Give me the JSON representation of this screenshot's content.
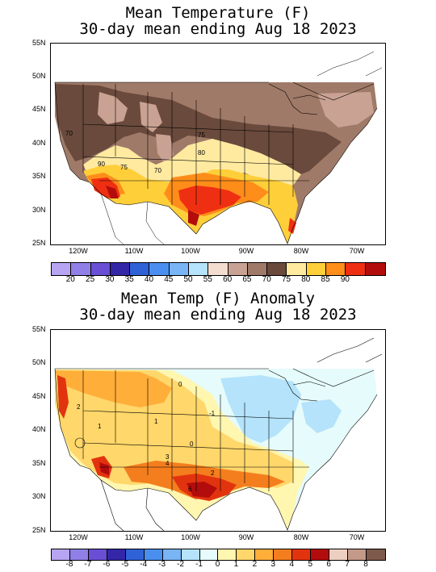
{
  "panels": [
    {
      "title_line1": "Mean Temperature (F)",
      "title_line2": "30-day mean ending Aug 18 2023",
      "lat_labels": [
        "55N",
        "50N",
        "45N",
        "40N",
        "35N",
        "30N",
        "25N"
      ],
      "lon_labels": [
        "120W",
        "110W",
        "100W",
        "90W",
        "80W",
        "70W"
      ],
      "contour_labels": [
        "70",
        "75",
        "80",
        "75",
        "70",
        "90"
      ],
      "colorbar_colors": [
        "#b7a5f1",
        "#8f7fe6",
        "#6a4ed6",
        "#3327a8",
        "#2f62d6",
        "#4a8ff0",
        "#79b4f5",
        "#b4e3fb",
        "#f3dcd0",
        "#c9a293",
        "#a07a68",
        "#6a4a3c",
        "#ffeaa0",
        "#ffcf3a",
        "#ff8d1a",
        "#ef2f12",
        "#b20c0c"
      ],
      "colorbar_ticks": [
        "20",
        "25",
        "30",
        "35",
        "40",
        "45",
        "50",
        "55",
        "60",
        "65",
        "70",
        "75",
        "80",
        "85",
        "90"
      ]
    },
    {
      "title_line1": "Mean Temp (F) Anomaly",
      "title_line2": "30-day mean ending Aug 18 2023",
      "lat_labels": [
        "55N",
        "50N",
        "45N",
        "40N",
        "35N",
        "30N",
        "25N"
      ],
      "lon_labels": [
        "120W",
        "110W",
        "100W",
        "90W",
        "80W",
        "70W"
      ],
      "contour_labels": [
        "2",
        "1",
        "0",
        "1",
        "4",
        "3",
        "2",
        "6",
        "-1",
        "0"
      ],
      "colorbar_colors": [
        "#b7a5f1",
        "#8f7fe6",
        "#6a4ed6",
        "#3327a8",
        "#2f62d6",
        "#4a8ff0",
        "#79b4f5",
        "#b4e3fb",
        "#e6fbfb",
        "#fff6b0",
        "#ffd76a",
        "#ffae3a",
        "#f47e1e",
        "#e2330f",
        "#b20c0c",
        "#edcfc2",
        "#c39988",
        "#7d5a4c"
      ],
      "colorbar_ticks": [
        "-8",
        "-7",
        "-6",
        "-5",
        "-4",
        "-3",
        "-2",
        "-1",
        "0",
        "1",
        "2",
        "3",
        "4",
        "5",
        "6",
        "7",
        "8"
      ]
    }
  ]
}
